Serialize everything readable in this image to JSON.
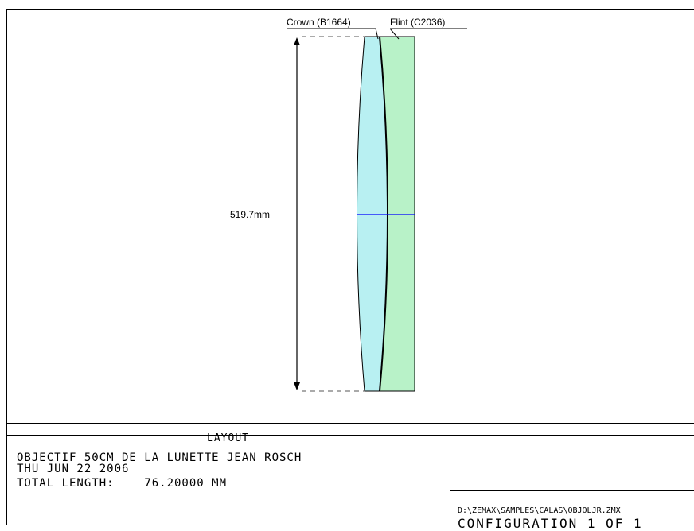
{
  "labels": {
    "crown": "Crown (B1664)",
    "flint": "Flint (C2036)",
    "dimension": "519.7mm"
  },
  "title_block": {
    "layout_title": "LAYOUT",
    "line1": "OBJECTIF 50CM DE LA LUNETTE JEAN ROSCH",
    "line2": "THU JUN 22 2006",
    "line3": "TOTAL LENGTH:    76.20000 MM",
    "file_path": "D:\\ZEMAX\\SAMPLES\\CALAS\\OBJOLJR.ZMX",
    "configuration": "CONFIGURATION 1 OF 1"
  },
  "colors": {
    "crown_fill": "#b8f0f2",
    "flint_fill": "#b8f2c8",
    "optical_axis": "#0000ff",
    "line": "#000000"
  }
}
